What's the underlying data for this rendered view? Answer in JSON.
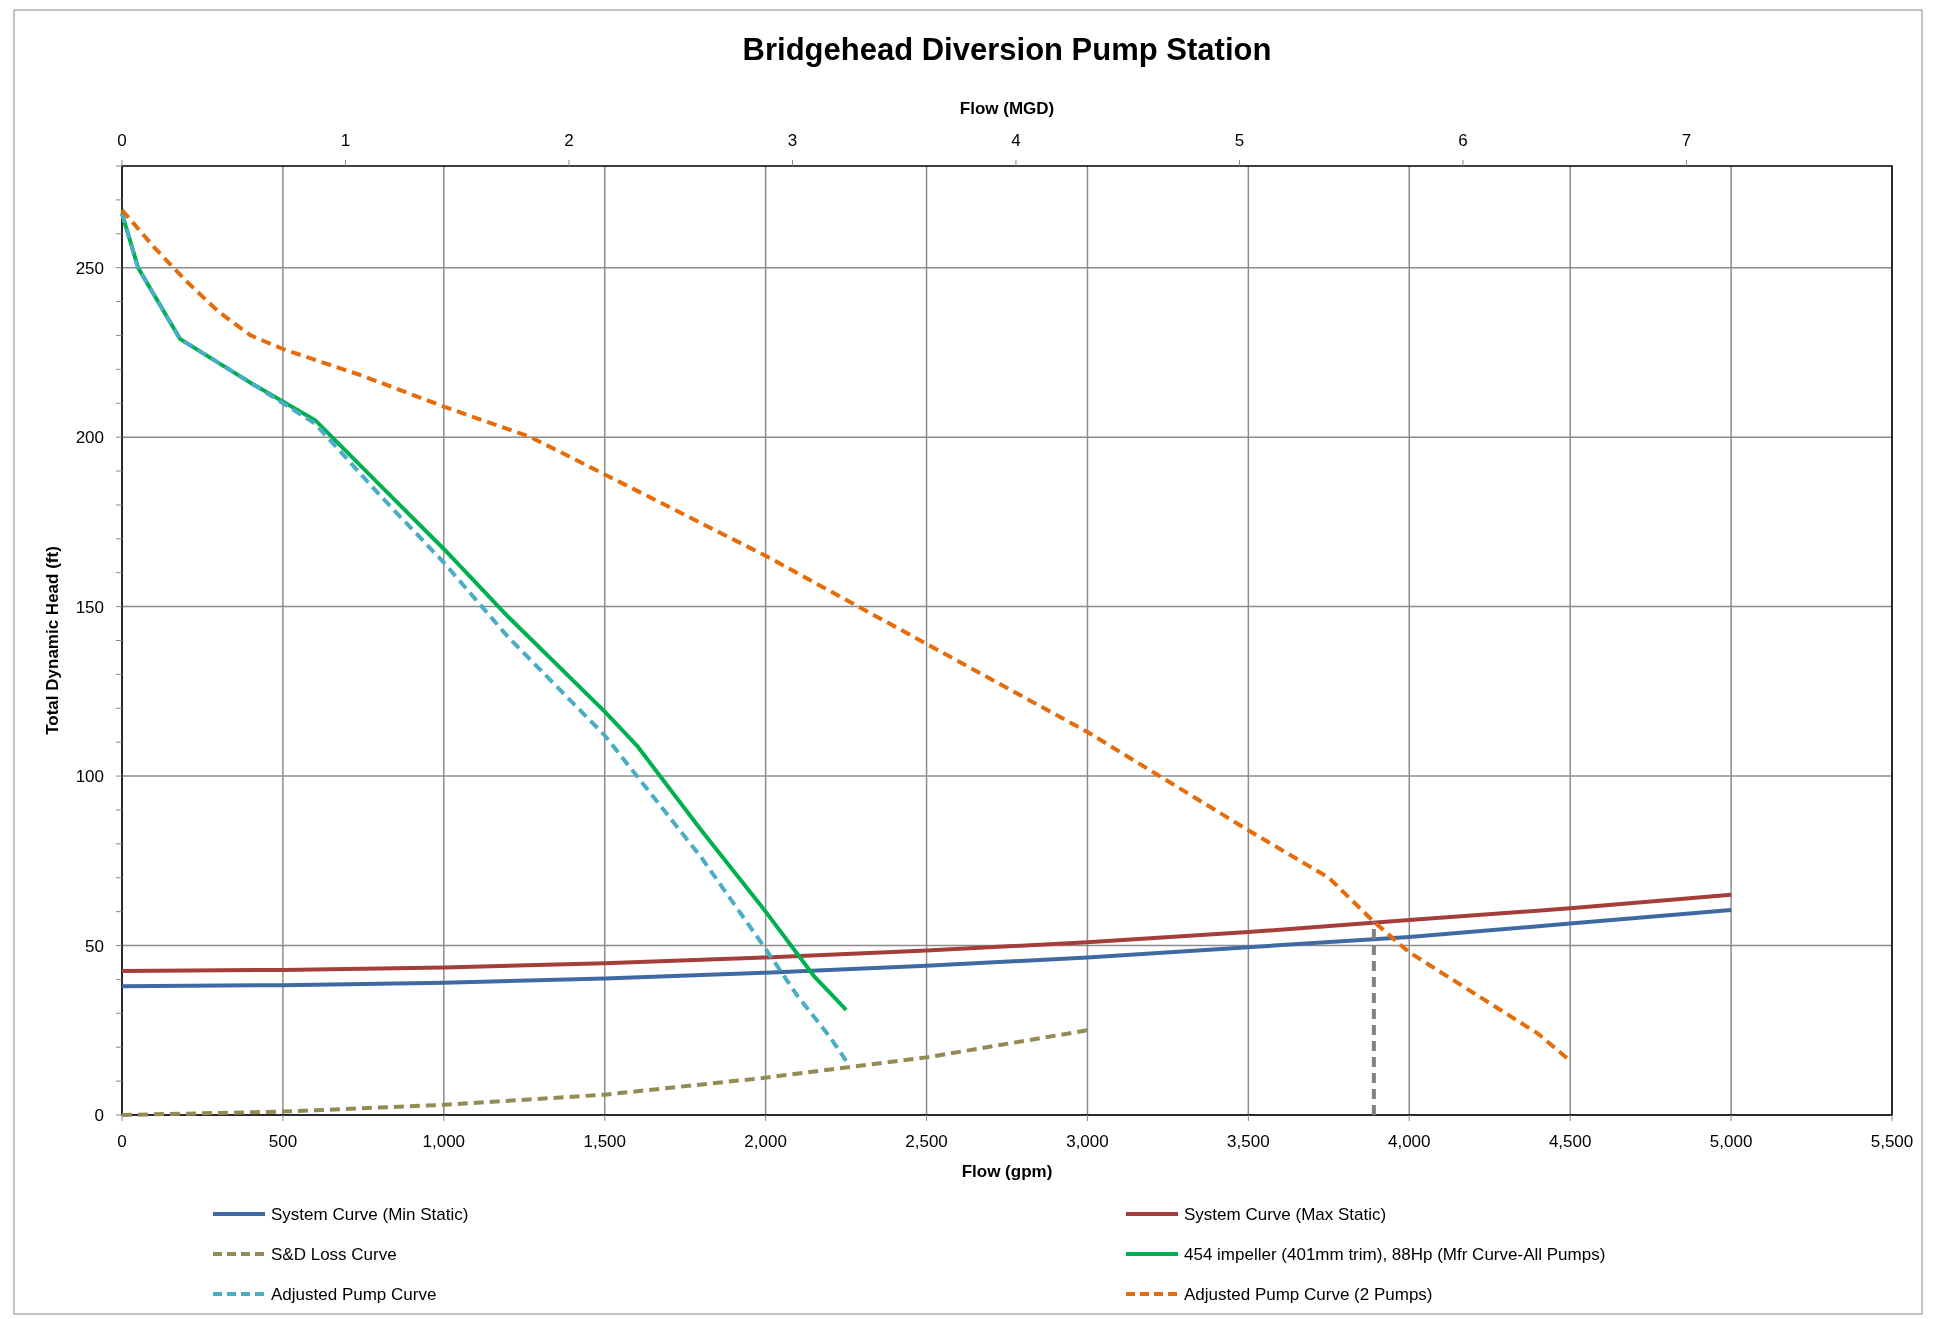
{
  "chart_data": {
    "type": "line",
    "title": "Bridgehead Diversion Pump Station",
    "xlabel": "Flow (gpm)",
    "x2label": "Flow (MGD)",
    "ylabel": "Total Dynamic Head (ft)",
    "xlim": [
      0,
      5500
    ],
    "xticks": [
      0,
      {
        "value": 500,
        "label": "500"
      },
      {
        "value": 1000,
        "label": "1,000"
      },
      {
        "value": 1500,
        "label": "1,500"
      },
      {
        "value": 2000,
        "label": "2,000"
      },
      {
        "value": 2500,
        "label": "2,500"
      },
      {
        "value": 3000,
        "label": "3,000"
      },
      {
        "value": 3500,
        "label": "3,500"
      },
      {
        "value": 4000,
        "label": "4,000"
      },
      {
        "value": 4500,
        "label": "4,500"
      },
      {
        "value": 5000,
        "label": "5,000"
      },
      {
        "value": 5500,
        "label": "5,500"
      }
    ],
    "x2lim": [
      0,
      7.92
    ],
    "x2ticks": [
      0,
      1,
      2,
      3,
      4,
      5,
      6,
      7
    ],
    "ylim": [
      0,
      280
    ],
    "yticks": [
      0,
      {
        "value": 10,
        "label": null
      },
      {
        "value": 20,
        "label": null
      },
      {
        "value": 30,
        "label": null
      },
      {
        "value": 40,
        "label": null
      },
      50,
      {
        "value": 60,
        "label": null
      },
      {
        "value": 70,
        "label": null
      },
      {
        "value": 80,
        "label": null
      },
      {
        "value": 90,
        "label": null
      },
      100,
      {
        "value": 110,
        "label": null
      },
      {
        "value": 120,
        "label": null
      },
      {
        "value": 130,
        "label": null
      },
      {
        "value": 140,
        "label": null
      },
      150,
      {
        "value": 160,
        "label": null
      },
      {
        "value": 170,
        "label": null
      },
      {
        "value": 180,
        "label": null
      },
      {
        "value": 190,
        "label": null
      },
      200,
      {
        "value": 210,
        "label": null
      },
      {
        "value": 220,
        "label": null
      },
      {
        "value": 230,
        "label": null
      },
      {
        "value": 240,
        "label": null
      },
      250,
      {
        "value": 260,
        "label": null
      },
      {
        "value": 270,
        "label": null
      },
      {
        "value": 280,
        "label": null
      }
    ],
    "grid": true,
    "legend": "bottom",
    "marker": "none",
    "series": [
      {
        "name": "System Curve (Min Static)",
        "color": "#3e6aa1",
        "line_style": "solid",
        "x": [
          0,
          500,
          1000,
          1500,
          2000,
          2500,
          3000,
          3500,
          4000,
          4500,
          5000
        ],
        "values": [
          38,
          38.3,
          39,
          40.3,
          42,
          44,
          46.5,
          49.5,
          52.5,
          56.5,
          60.5
        ]
      },
      {
        "name": "System Curve (Max Static)",
        "color": "#a33e3b",
        "line_style": "solid",
        "x": [
          0,
          500,
          1000,
          1500,
          2000,
          2500,
          3000,
          3500,
          4000,
          4500,
          5000
        ],
        "values": [
          42.5,
          42.8,
          43.5,
          44.8,
          46.5,
          48.5,
          51,
          54,
          57.5,
          61,
          65
        ]
      },
      {
        "name": "S&D Loss Curve",
        "color": "#948a54",
        "line_style": "dashed",
        "x": [
          0,
          500,
          1000,
          1500,
          2000,
          2500,
          3000
        ],
        "values": [
          0,
          1,
          3,
          6,
          11,
          17,
          25
        ]
      },
      {
        "name": "454 impeller (401mm trim), 88Hp (Mfr Curve-All Pumps)",
        "color": "#00b050",
        "line_style": "solid",
        "x": [
          0,
          50,
          180,
          400,
          600,
          800,
          1000,
          1200,
          1500,
          1600,
          1800,
          2000,
          2150,
          2200,
          2250
        ],
        "values": [
          266,
          250,
          229,
          216,
          205,
          186,
          167,
          147,
          119,
          109,
          84,
          60,
          41,
          36,
          31
        ]
      },
      {
        "name": "Adjusted Pump Curve",
        "color": "#4bacc6",
        "line_style": "dashed",
        "x": [
          0,
          50,
          180,
          400,
          600,
          800,
          1000,
          1200,
          1500,
          1800,
          2000,
          2100,
          2200,
          2250
        ],
        "values": [
          266,
          250,
          229,
          216,
          204,
          183,
          163,
          141,
          112,
          76,
          49,
          35,
          23,
          16
        ]
      },
      {
        "name": "Adjusted Pump Curve (2 Pumps)",
        "color": "#e46c0a",
        "line_style": "dashed",
        "x": [
          0,
          100,
          200,
          300,
          400,
          500,
          750,
          1000,
          1270,
          1500,
          2000,
          2500,
          3000,
          3500,
          3750,
          3890,
          4000,
          4250,
          4400,
          4500
        ],
        "values": [
          267,
          256,
          246,
          237,
          230,
          226,
          218,
          209,
          200,
          189,
          165,
          139,
          113,
          84,
          70,
          57,
          48,
          33,
          24,
          16
        ]
      },
      {
        "color": "#808080",
        "line_style": "dashed",
        "x": [
          3890,
          3890
        ],
        "values": [
          0,
          57
        ]
      }
    ]
  }
}
